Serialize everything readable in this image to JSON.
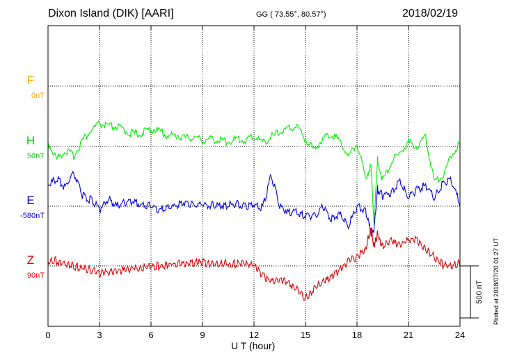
{
  "header": {
    "title": "Dixon Island (DIK)  [AARI]",
    "coords": "GG ( 73.55°,  80.57°)",
    "date": "2018/02/19"
  },
  "footer": {
    "plotted": "Plotted at 2018/07/20 01:27 UT"
  },
  "chart_data": {
    "type": "line",
    "xlabel": "U T (hour)",
    "xlim": [
      0,
      24
    ],
    "xticks": [
      0,
      3,
      6,
      9,
      12,
      15,
      18,
      21,
      24
    ],
    "scale_bar": {
      "label": "500 nT",
      "value_nT": 500
    },
    "channel_labels": [
      {
        "letter": "F",
        "baseline": "0nT",
        "color": "#FFA500"
      },
      {
        "letter": "H",
        "baseline": "50nT",
        "color": "#00CC00"
      },
      {
        "letter": "E",
        "baseline": "-580nT",
        "color": "#0000CC"
      },
      {
        "letter": "Z",
        "baseline": "90nT",
        "color": "#DD0000"
      }
    ],
    "series": [
      {
        "color": "#00EE00",
        "x": [
          0,
          0.5,
          1,
          1.5,
          2,
          2.5,
          3,
          3.5,
          4,
          4.5,
          5,
          5.5,
          6,
          6.5,
          7,
          7.5,
          8,
          8.5,
          9,
          9.5,
          10,
          10.5,
          11,
          11.5,
          12,
          12.5,
          13,
          13.5,
          14,
          14.5,
          15,
          15.5,
          16,
          16.5,
          17,
          17.5,
          18,
          18.5,
          18.8,
          19,
          19.2,
          19.5,
          20,
          20.5,
          21,
          21.5,
          22,
          22.5,
          23,
          23.5,
          24
        ],
        "y": [
          20,
          -140,
          -60,
          -110,
          40,
          130,
          200,
          170,
          170,
          130,
          100,
          110,
          150,
          130,
          80,
          90,
          60,
          70,
          40,
          50,
          40,
          30,
          50,
          40,
          80,
          20,
          70,
          120,
          150,
          180,
          50,
          -50,
          60,
          100,
          40,
          -120,
          10,
          -320,
          -200,
          -750,
          -150,
          -350,
          -170,
          -80,
          20,
          -20,
          70,
          -350,
          -300,
          -100,
          20
        ]
      },
      {
        "color": "#0000DD",
        "x": [
          0,
          0.5,
          1,
          1.5,
          2,
          2.5,
          3,
          3.5,
          4,
          4.5,
          5,
          5.5,
          6,
          6.5,
          7,
          7.5,
          8,
          8.5,
          9,
          9.5,
          10,
          10.5,
          11,
          11.5,
          12,
          12.5,
          13,
          13.5,
          14,
          14.5,
          15,
          15.5,
          16,
          16.5,
          17,
          17.5,
          18,
          18.5,
          18.8,
          19,
          19.2,
          19.5,
          20,
          20.5,
          21,
          21.5,
          22,
          22.5,
          23,
          23.5,
          24
        ],
        "y": [
          180,
          250,
          160,
          300,
          80,
          40,
          -50,
          50,
          -20,
          20,
          30,
          -10,
          -10,
          -60,
          -30,
          -10,
          20,
          -10,
          0,
          -10,
          -20,
          -10,
          0,
          -20,
          0,
          -30,
          280,
          -30,
          -70,
          -80,
          -110,
          -120,
          -20,
          -140,
          -100,
          -200,
          -30,
          -50,
          -270,
          -250,
          140,
          80,
          110,
          220,
          60,
          140,
          180,
          60,
          200,
          230,
          0
        ]
      },
      {
        "color": "#DD0000",
        "x": [
          0,
          0.5,
          1,
          1.5,
          2,
          2.5,
          3,
          3.5,
          4,
          4.5,
          5,
          5.5,
          6,
          6.5,
          7,
          7.5,
          8,
          8.5,
          9,
          9.5,
          10,
          10.5,
          11,
          11.5,
          12,
          12.5,
          13,
          13.5,
          14,
          14.5,
          15,
          15.5,
          16,
          16.5,
          17,
          17.5,
          18,
          18.5,
          18.8,
          19,
          19.2,
          19.5,
          20,
          20.5,
          21,
          21.5,
          22,
          22.5,
          23,
          23.5,
          24
        ],
        "y": [
          20,
          30,
          -10,
          -20,
          -40,
          -60,
          -90,
          -80,
          -70,
          -60,
          -40,
          -30,
          -20,
          -20,
          -10,
          0,
          0,
          10,
          10,
          0,
          10,
          0,
          0,
          10,
          -20,
          -110,
          -180,
          -160,
          -180,
          -250,
          -330,
          -230,
          -170,
          -140,
          -60,
          30,
          60,
          150,
          320,
          180,
          290,
          170,
          220,
          170,
          230,
          230,
          130,
          70,
          -10,
          -10,
          0
        ]
      }
    ]
  }
}
